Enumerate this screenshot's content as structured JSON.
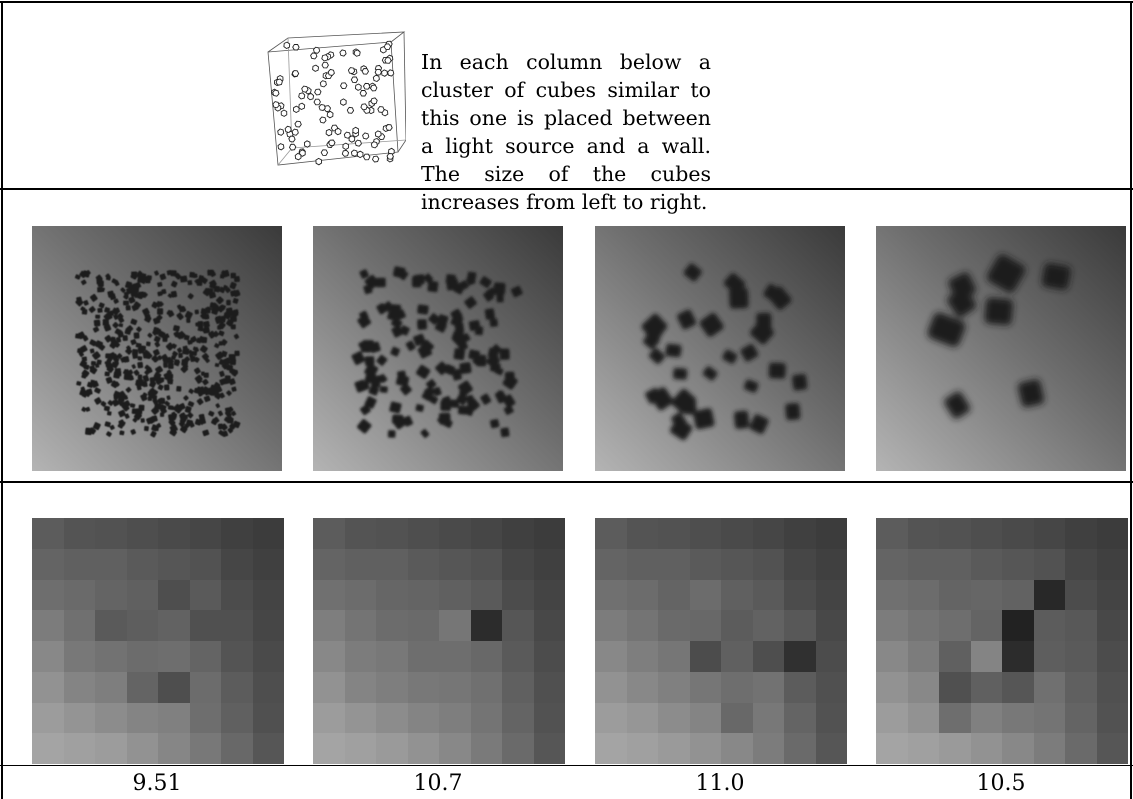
{
  "caption": "In each column below a cluster of cubes similar to this one is placed between a light source and a wall. The size of the cubes increases from left to right.",
  "columns": [
    {
      "cube_size_level": 1,
      "seed": 11,
      "count": 520,
      "blob_size": 5.5,
      "value": "9.51"
    },
    {
      "cube_size_level": 2,
      "seed": 23,
      "count": 130,
      "blob_size": 10,
      "value": "10.7"
    },
    {
      "cube_size_level": 3,
      "seed": 37,
      "count": 32,
      "blob_size": 17,
      "value": "11.0"
    },
    {
      "cube_size_level": 4,
      "seed": 53,
      "count": 8,
      "blob_size": 29,
      "value": "10.5"
    }
  ],
  "lowres_grids": [
    [
      [
        92,
        84,
        82,
        78,
        74,
        70,
        64,
        60
      ],
      [
        100,
        96,
        96,
        90,
        86,
        82,
        70,
        64
      ],
      [
        110,
        106,
        100,
        96,
        78,
        90,
        76,
        68
      ],
      [
        124,
        112,
        90,
        94,
        98,
        80,
        80,
        70
      ],
      [
        136,
        120,
        114,
        108,
        110,
        100,
        84,
        74
      ],
      [
        146,
        132,
        126,
        100,
        78,
        108,
        92,
        78
      ],
      [
        156,
        148,
        140,
        132,
        128,
        110,
        96,
        80
      ],
      [
        164,
        160,
        156,
        146,
        134,
        120,
        104,
        86
      ]
    ],
    [
      [
        92,
        84,
        82,
        78,
        74,
        70,
        64,
        60
      ],
      [
        100,
        96,
        96,
        90,
        86,
        82,
        70,
        64
      ],
      [
        112,
        108,
        102,
        100,
        96,
        90,
        76,
        68
      ],
      [
        126,
        116,
        108,
        106,
        118,
        44,
        86,
        72
      ],
      [
        136,
        124,
        120,
        110,
        110,
        104,
        90,
        76
      ],
      [
        146,
        132,
        126,
        120,
        118,
        112,
        96,
        80
      ],
      [
        156,
        148,
        140,
        132,
        126,
        116,
        100,
        82
      ],
      [
        164,
        160,
        154,
        146,
        136,
        122,
        106,
        86
      ]
    ],
    [
      [
        92,
        84,
        82,
        78,
        74,
        70,
        64,
        60
      ],
      [
        100,
        96,
        96,
        90,
        86,
        82,
        70,
        64
      ],
      [
        112,
        108,
        100,
        108,
        96,
        90,
        76,
        68
      ],
      [
        124,
        116,
        106,
        104,
        92,
        98,
        88,
        72
      ],
      [
        136,
        126,
        118,
        76,
        96,
        78,
        48,
        76
      ],
      [
        146,
        136,
        128,
        118,
        110,
        114,
        92,
        80
      ],
      [
        156,
        150,
        140,
        132,
        104,
        120,
        100,
        82
      ],
      [
        164,
        160,
        154,
        146,
        136,
        124,
        106,
        86
      ]
    ],
    [
      [
        92,
        84,
        82,
        78,
        74,
        70,
        64,
        60
      ],
      [
        100,
        96,
        96,
        90,
        86,
        82,
        70,
        64
      ],
      [
        112,
        108,
        100,
        102,
        98,
        40,
        76,
        68
      ],
      [
        124,
        116,
        110,
        100,
        34,
        92,
        88,
        72
      ],
      [
        136,
        124,
        96,
        132,
        44,
        94,
        90,
        76
      ],
      [
        146,
        136,
        80,
        96,
        86,
        112,
        96,
        80
      ],
      [
        156,
        146,
        110,
        128,
        120,
        116,
        100,
        82
      ],
      [
        164,
        160,
        154,
        146,
        136,
        124,
        106,
        86
      ]
    ]
  ]
}
